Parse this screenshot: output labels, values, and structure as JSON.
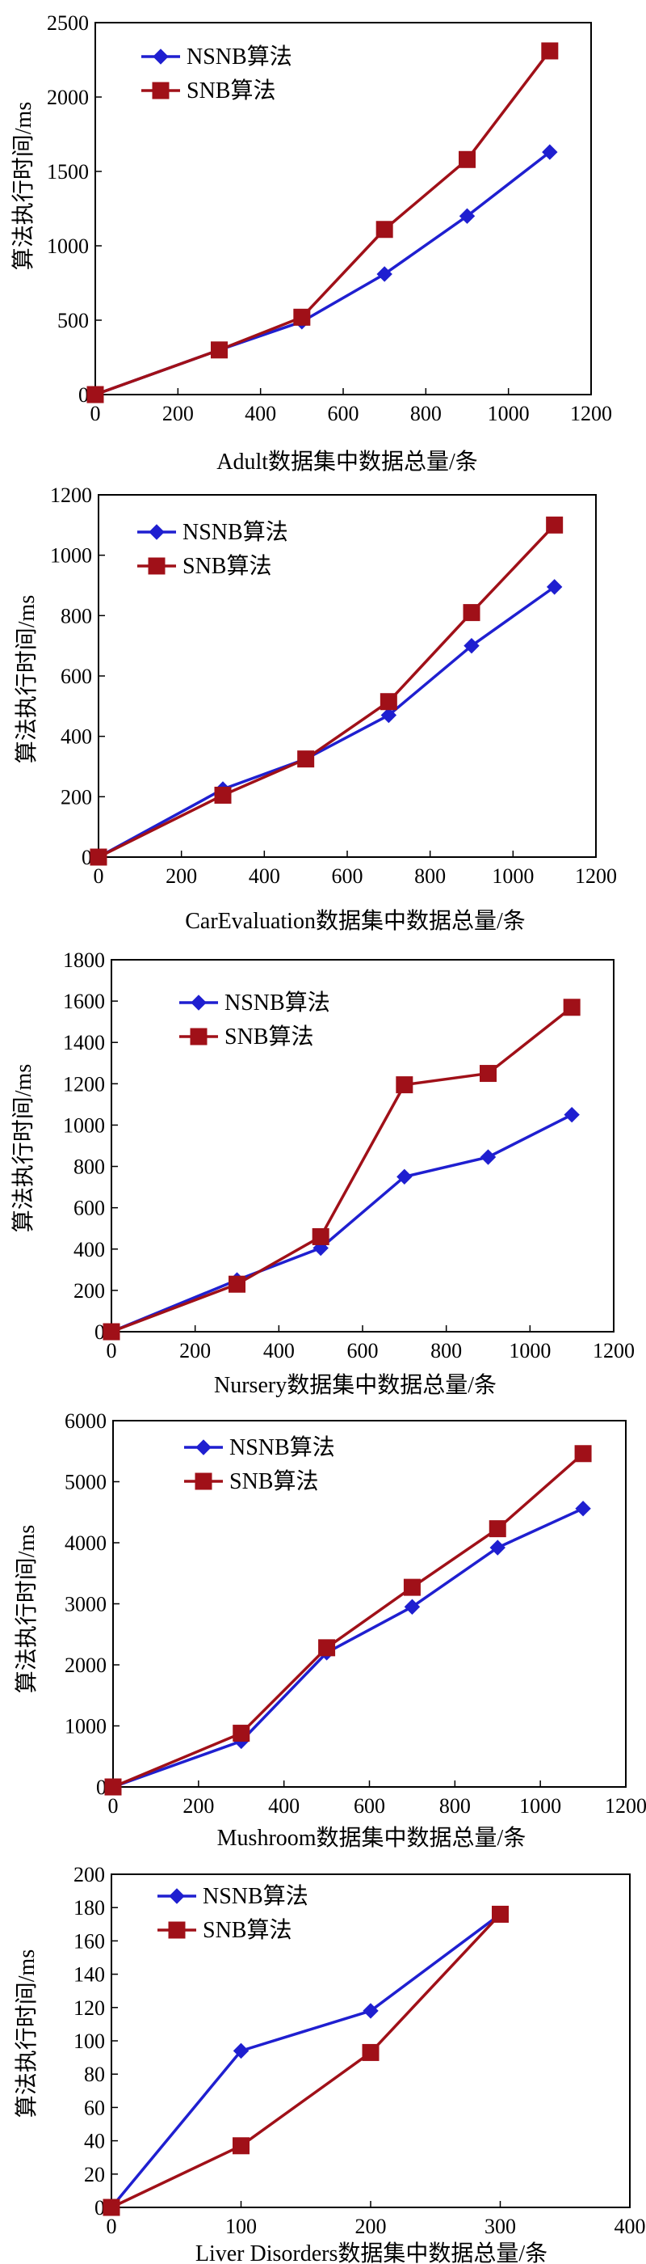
{
  "chart_data": [
    {
      "type": "line",
      "xlabel": "Adult数据集中数据总量/条",
      "ylabel": "算法执行时间/ms",
      "xlim": [
        0,
        1200
      ],
      "ylim": [
        0,
        2500
      ],
      "xticks": [
        0,
        200,
        400,
        600,
        800,
        1000,
        1200
      ],
      "yticks": [
        0,
        500,
        1000,
        1500,
        2000,
        2500
      ],
      "legend_position": "top-left",
      "series": [
        {
          "name": "NSNB算法",
          "color": "#1f1fd0",
          "marker": "diamond",
          "x": [
            0,
            300,
            500,
            700,
            900,
            1100
          ],
          "y": [
            0,
            300,
            490,
            810,
            1200,
            1630
          ]
        },
        {
          "name": "SNB算法",
          "color": "#a01018",
          "marker": "square",
          "x": [
            0,
            300,
            500,
            700,
            900,
            1100
          ],
          "y": [
            0,
            300,
            520,
            1110,
            1580,
            2310
          ]
        }
      ]
    },
    {
      "type": "line",
      "xlabel": "CarEvaluation数据集中数据总量/条",
      "ylabel": "算法执行时间/ms",
      "xlim": [
        0,
        1200
      ],
      "ylim": [
        0,
        1200
      ],
      "xticks": [
        0,
        200,
        400,
        600,
        800,
        1000,
        1200
      ],
      "yticks": [
        0,
        200,
        400,
        600,
        800,
        1000,
        1200
      ],
      "legend_position": "top-left",
      "series": [
        {
          "name": "NSNB算法",
          "color": "#1f1fd0",
          "marker": "diamond",
          "x": [
            0,
            300,
            500,
            700,
            900,
            1100
          ],
          "y": [
            0,
            225,
            325,
            470,
            700,
            895
          ]
        },
        {
          "name": "SNB算法",
          "color": "#a01018",
          "marker": "square",
          "x": [
            0,
            300,
            500,
            700,
            900,
            1100
          ],
          "y": [
            0,
            205,
            325,
            515,
            810,
            1100
          ]
        }
      ]
    },
    {
      "type": "line",
      "xlabel": "Nursery数据集中数据总量/条",
      "ylabel": "算法执行时间/ms",
      "xlim": [
        0,
        1200
      ],
      "ylim": [
        0,
        1800
      ],
      "xticks": [
        0,
        200,
        400,
        600,
        800,
        1000,
        1200
      ],
      "yticks": [
        0,
        200,
        400,
        600,
        800,
        1000,
        1200,
        1400,
        1600,
        1800
      ],
      "legend_position": "top-left",
      "series": [
        {
          "name": "NSNB算法",
          "color": "#1f1fd0",
          "marker": "diamond",
          "x": [
            0,
            300,
            500,
            700,
            900,
            1100
          ],
          "y": [
            0,
            250,
            405,
            750,
            845,
            1050
          ]
        },
        {
          "name": "SNB算法",
          "color": "#a01018",
          "marker": "square",
          "x": [
            0,
            300,
            500,
            700,
            900,
            1100
          ],
          "y": [
            0,
            230,
            460,
            1195,
            1250,
            1570
          ]
        }
      ]
    },
    {
      "type": "line",
      "xlabel": "Mushroom数据集中数据总量/条",
      "ylabel": "算法执行时间/ms",
      "xlim": [
        0,
        1200
      ],
      "ylim": [
        0,
        6000
      ],
      "xticks": [
        0,
        200,
        400,
        600,
        800,
        1000,
        1200
      ],
      "yticks": [
        0,
        1000,
        2000,
        3000,
        4000,
        5000,
        6000
      ],
      "legend_position": "top-left",
      "series": [
        {
          "name": "NSNB算法",
          "color": "#1f1fd0",
          "marker": "diamond",
          "x": [
            0,
            300,
            500,
            700,
            900,
            1100
          ],
          "y": [
            0,
            750,
            2200,
            2950,
            3920,
            4560
          ]
        },
        {
          "name": "SNB算法",
          "color": "#a01018",
          "marker": "square",
          "x": [
            0,
            300,
            500,
            700,
            900,
            1100
          ],
          "y": [
            0,
            880,
            2280,
            3270,
            4230,
            5460
          ]
        }
      ]
    },
    {
      "type": "line",
      "xlabel": "Liver Disorders数据集中数据总量/条",
      "ylabel": "算法执行时间/ms",
      "xlim": [
        0,
        400
      ],
      "ylim": [
        0,
        200
      ],
      "xticks": [
        0,
        100,
        200,
        300,
        400
      ],
      "yticks": [
        0,
        20,
        40,
        60,
        80,
        100,
        120,
        140,
        160,
        180,
        200
      ],
      "legend_position": "top-left",
      "series": [
        {
          "name": "NSNB算法",
          "color": "#1f1fd0",
          "marker": "diamond",
          "x": [
            0,
            100,
            200,
            300
          ],
          "y": [
            0,
            94,
            118,
            176
          ]
        },
        {
          "name": "SNB算法",
          "color": "#a01018",
          "marker": "square",
          "x": [
            0,
            100,
            200,
            300
          ],
          "y": [
            0,
            37,
            93,
            176
          ]
        }
      ]
    }
  ]
}
